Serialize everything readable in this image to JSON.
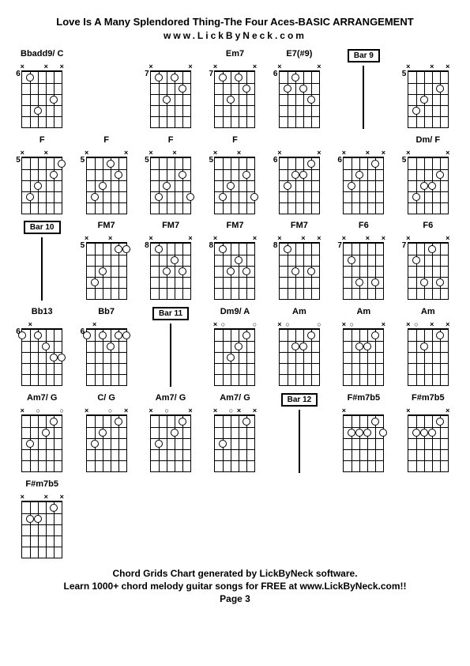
{
  "title": "Love Is A Many Splendored Thing-The Four Aces-BASIC ARRANGEMENT",
  "url": "www.LickByNeck.com",
  "footer1": "Chord Grids Chart generated by LickByNeck software.",
  "footer2": "Learn 1000+ chord melody guitar songs for FREE at www.LickByNeck.com!!",
  "page": "Page 3",
  "cells": [
    {
      "type": "chord",
      "label": "Bbadd9/ C",
      "fret": 6,
      "muted": [
        1,
        3,
        6
      ],
      "open": [],
      "dots": [
        [
          2,
          3
        ],
        [
          4,
          4
        ],
        [
          5,
          1
        ]
      ]
    },
    {
      "type": "blank"
    },
    {
      "type": "chord",
      "label": "",
      "fret": 7,
      "muted": [
        1,
        6
      ],
      "open": [],
      "dots": [
        [
          2,
          2
        ],
        [
          3,
          1
        ],
        [
          4,
          3
        ],
        [
          5,
          1
        ]
      ]
    },
    {
      "type": "chord",
      "label": "Em7",
      "fret": 7,
      "muted": [
        1,
        6
      ],
      "open": [],
      "dots": [
        [
          2,
          2
        ],
        [
          3,
          1
        ],
        [
          4,
          3
        ],
        [
          5,
          1
        ]
      ]
    },
    {
      "type": "chord",
      "label": "E7(#9)",
      "fret": 6,
      "muted": [
        1,
        6
      ],
      "open": [],
      "dots": [
        [
          2,
          3
        ],
        [
          3,
          2
        ],
        [
          4,
          1
        ],
        [
          5,
          2
        ]
      ]
    },
    {
      "type": "bar",
      "label": "Bar 9"
    },
    {
      "type": "chord",
      "label": "",
      "fret": 5,
      "muted": [
        1,
        3,
        6
      ],
      "open": [],
      "dots": [
        [
          2,
          2
        ],
        [
          4,
          3
        ],
        [
          5,
          4
        ]
      ]
    },
    {
      "type": "chord",
      "label": "F",
      "fret": 5,
      "muted": [
        3,
        6
      ],
      "open": [],
      "dots": [
        [
          1,
          1
        ],
        [
          2,
          2
        ],
        [
          4,
          3
        ],
        [
          5,
          4
        ]
      ]
    },
    {
      "type": "chord",
      "label": "F",
      "fret": 5,
      "muted": [
        1,
        6
      ],
      "open": [],
      "dots": [
        [
          2,
          2
        ],
        [
          3,
          1
        ],
        [
          4,
          3
        ],
        [
          5,
          4
        ]
      ]
    },
    {
      "type": "chord",
      "label": "F",
      "fret": 5,
      "muted": [
        3,
        6
      ],
      "open": [],
      "dots": [
        [
          1,
          4
        ],
        [
          2,
          2
        ],
        [
          4,
          3
        ],
        [
          5,
          4
        ]
      ]
    },
    {
      "type": "chord",
      "label": "F",
      "fret": 5,
      "muted": [
        3,
        6
      ],
      "open": [],
      "dots": [
        [
          1,
          4
        ],
        [
          2,
          2
        ],
        [
          4,
          3
        ],
        [
          5,
          4
        ]
      ]
    },
    {
      "type": "chord",
      "label": "",
      "fret": 6,
      "muted": [
        1,
        6
      ],
      "open": [],
      "dots": [
        [
          2,
          1
        ],
        [
          3,
          2
        ],
        [
          4,
          2
        ],
        [
          5,
          3
        ]
      ]
    },
    {
      "type": "chord",
      "label": "",
      "fret": 6,
      "muted": [
        1,
        3,
        6
      ],
      "open": [],
      "dots": [
        [
          2,
          1
        ],
        [
          4,
          2
        ],
        [
          5,
          3
        ]
      ]
    },
    {
      "type": "chord",
      "label": "Dm/ F",
      "fret": 5,
      "muted": [
        1,
        6
      ],
      "open": [],
      "dots": [
        [
          2,
          2
        ],
        [
          3,
          3
        ],
        [
          4,
          3
        ],
        [
          5,
          4
        ]
      ]
    },
    {
      "type": "bar",
      "label": "Bar 10"
    },
    {
      "type": "chord",
      "label": "FM7",
      "fret": 5,
      "muted": [
        3,
        6
      ],
      "open": [],
      "dots": [
        [
          1,
          1
        ],
        [
          2,
          1
        ],
        [
          4,
          3
        ],
        [
          5,
          4
        ]
      ]
    },
    {
      "type": "chord",
      "label": "FM7",
      "fret": 8,
      "muted": [
        1,
        6
      ],
      "open": [],
      "dots": [
        [
          2,
          3
        ],
        [
          3,
          2
        ],
        [
          4,
          3
        ],
        [
          5,
          1
        ]
      ]
    },
    {
      "type": "chord",
      "label": "FM7",
      "fret": 8,
      "muted": [
        1,
        6
      ],
      "open": [],
      "dots": [
        [
          2,
          3
        ],
        [
          3,
          2
        ],
        [
          4,
          3
        ],
        [
          5,
          1
        ]
      ]
    },
    {
      "type": "chord",
      "label": "FM7",
      "fret": 8,
      "muted": [
        1,
        3,
        6
      ],
      "open": [],
      "dots": [
        [
          2,
          3
        ],
        [
          4,
          3
        ],
        [
          5,
          1
        ]
      ]
    },
    {
      "type": "chord",
      "label": "F6",
      "fret": 7,
      "muted": [
        1,
        3,
        6
      ],
      "open": [],
      "dots": [
        [
          2,
          4
        ],
        [
          4,
          4
        ],
        [
          5,
          2
        ]
      ]
    },
    {
      "type": "chord",
      "label": "F6",
      "fret": 7,
      "muted": [
        1,
        6
      ],
      "open": [],
      "dots": [
        [
          2,
          4
        ],
        [
          3,
          1
        ],
        [
          4,
          4
        ],
        [
          5,
          2
        ]
      ]
    },
    {
      "type": "chord",
      "label": "Bb13",
      "fret": 6,
      "muted": [
        5
      ],
      "open": [],
      "dots": [
        [
          1,
          3
        ],
        [
          2,
          3
        ],
        [
          3,
          2
        ],
        [
          4,
          1
        ],
        [
          6,
          1
        ]
      ]
    },
    {
      "type": "chord",
      "label": "Bb7",
      "fret": 6,
      "muted": [
        5
      ],
      "open": [],
      "dots": [
        [
          1,
          1
        ],
        [
          2,
          1
        ],
        [
          3,
          2
        ],
        [
          4,
          1
        ],
        [
          6,
          1
        ]
      ]
    },
    {
      "type": "bar",
      "label": "Bar 11"
    },
    {
      "type": "chord",
      "label": "Dm9/ A",
      "fret": "",
      "muted": [
        6
      ],
      "open": [
        1,
        5
      ],
      "dots": [
        [
          2,
          1
        ],
        [
          3,
          2
        ],
        [
          4,
          3
        ]
      ]
    },
    {
      "type": "chord",
      "label": "Am",
      "fret": "",
      "muted": [
        6
      ],
      "open": [
        1,
        5
      ],
      "dots": [
        [
          2,
          1
        ],
        [
          3,
          2
        ],
        [
          4,
          2
        ]
      ]
    },
    {
      "type": "chord",
      "label": "Am",
      "fret": "",
      "muted": [
        1,
        6
      ],
      "open": [
        5
      ],
      "dots": [
        [
          2,
          1
        ],
        [
          3,
          2
        ],
        [
          4,
          2
        ]
      ]
    },
    {
      "type": "chord",
      "label": "Am",
      "fret": "",
      "muted": [
        1,
        3,
        6
      ],
      "open": [
        5
      ],
      "dots": [
        [
          2,
          1
        ],
        [
          4,
          2
        ]
      ]
    },
    {
      "type": "chord",
      "label": "Am7/ G",
      "fret": "",
      "muted": [
        6
      ],
      "open": [
        4,
        1
      ],
      "dots": [
        [
          2,
          1
        ],
        [
          3,
          2
        ],
        [
          5,
          3
        ]
      ]
    },
    {
      "type": "chord",
      "label": "C/ G",
      "fret": "",
      "muted": [
        1,
        6
      ],
      "open": [
        3
      ],
      "dots": [
        [
          2,
          1
        ],
        [
          4,
          2
        ],
        [
          5,
          3
        ]
      ]
    },
    {
      "type": "chord",
      "label": "Am7/ G",
      "fret": "",
      "muted": [
        1,
        6
      ],
      "open": [
        4
      ],
      "dots": [
        [
          2,
          1
        ],
        [
          3,
          2
        ],
        [
          5,
          3
        ]
      ]
    },
    {
      "type": "chord",
      "label": "Am7/ G",
      "fret": "",
      "muted": [
        1,
        3,
        6
      ],
      "open": [
        4
      ],
      "dots": [
        [
          2,
          1
        ],
        [
          5,
          3
        ]
      ]
    },
    {
      "type": "bar",
      "label": "Bar 12"
    },
    {
      "type": "chord",
      "label": "F#m7b5",
      "fret": "",
      "muted": [
        6
      ],
      "open": [],
      "dots": [
        [
          1,
          2
        ],
        [
          2,
          1
        ],
        [
          3,
          2
        ],
        [
          4,
          2
        ],
        [
          5,
          2
        ]
      ]
    },
    {
      "type": "chord",
      "label": "F#m7b5",
      "fret": "",
      "muted": [
        1,
        6
      ],
      "open": [],
      "dots": [
        [
          2,
          1
        ],
        [
          3,
          2
        ],
        [
          4,
          2
        ],
        [
          5,
          2
        ]
      ]
    },
    {
      "type": "chord",
      "label": "F#m7b5",
      "fret": "",
      "muted": [
        1,
        3,
        6
      ],
      "open": [],
      "dots": [
        [
          2,
          1
        ],
        [
          4,
          2
        ],
        [
          5,
          2
        ]
      ]
    }
  ]
}
